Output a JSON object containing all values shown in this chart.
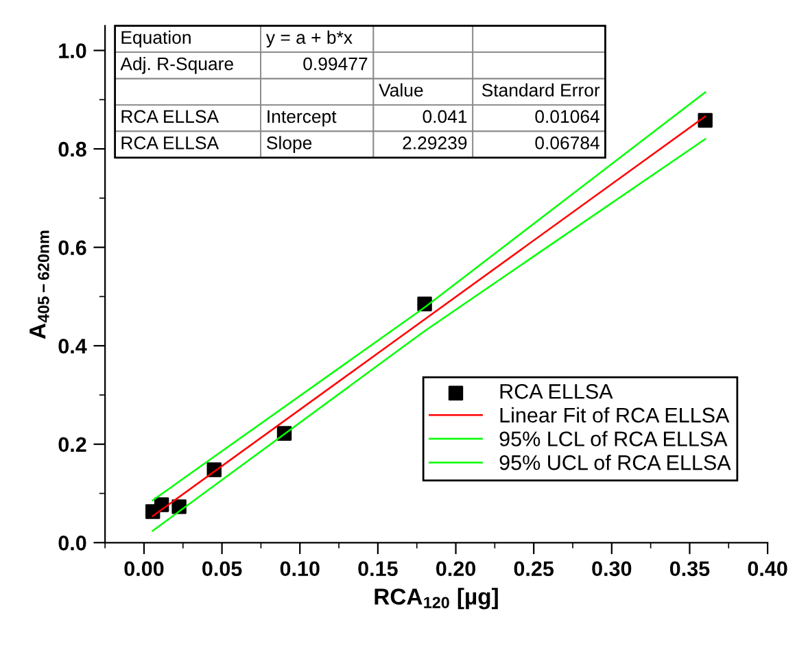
{
  "chart_data": {
    "type": "scatter",
    "xlabel": "RCA$_{120}$ [µg]",
    "ylabel": "A$_{405−620nm}$",
    "x": [
      0.0056,
      0.0113,
      0.0225,
      0.045,
      0.09,
      0.18,
      0.36
    ],
    "series": [
      {
        "name": "RCA ELLSA",
        "color": "#000000",
        "marker": "square",
        "values": [
          0.063,
          0.077,
          0.073,
          0.148,
          0.222,
          0.485,
          0.858
        ]
      },
      {
        "name": "Linear Fit of RCA ELLSA",
        "type": "line",
        "color": "#ff0000",
        "x": [
          0.0056,
          0.36
        ],
        "values": [
          0.054,
          0.866
        ]
      },
      {
        "name": "95% LCL of RCA ELLSA",
        "type": "line",
        "color": "#00ff00",
        "x": [
          0.0056,
          0.18,
          0.36
        ],
        "values": [
          0.024,
          0.43,
          0.82
        ]
      },
      {
        "name": "95% UCL of RCA ELLSA",
        "type": "line",
        "color": "#00ff00",
        "x": [
          0.0056,
          0.18,
          0.36
        ],
        "values": [
          0.086,
          0.478,
          0.915
        ]
      }
    ],
    "annotations": [
      "Equation",
      "y = a + b*x",
      "Adj. R-Square",
      "0.99477",
      "Value",
      "Standard Error",
      "RCA ELLSA",
      "Intercept",
      "0.041",
      "0.01064",
      "RCA ELLSA",
      "Slope",
      "2.29239",
      "0.06784"
    ],
    "xlim": [
      -0.025,
      0.4
    ],
    "xticks": [
      {
        "value": 0,
        "label": "0.00"
      },
      0.05,
      {
        "value": 0.1,
        "label": "0.10"
      },
      0.15,
      {
        "value": 0.2,
        "label": "0.20"
      },
      0.25,
      {
        "value": 0.3,
        "label": "0.30"
      },
      0.35,
      {
        "value": 0.4,
        "label": "0.40"
      }
    ],
    "ylim": [
      0,
      1.05
    ],
    "yticks": [
      {
        "value": 0,
        "label": "0.0"
      },
      0.2,
      0.4,
      0.6,
      0.8,
      {
        "value": 1,
        "label": "1.0"
      }
    ],
    "legend": "bottom right"
  }
}
